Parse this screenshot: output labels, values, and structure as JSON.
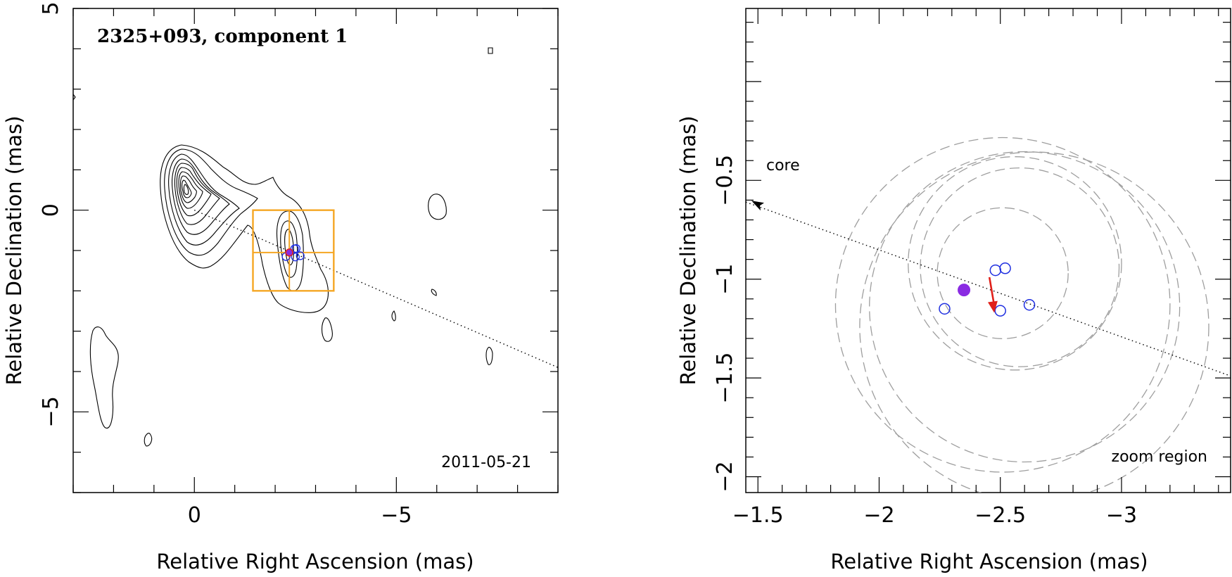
{
  "chart_data": [
    {
      "type": "contour",
      "title": "2325+093, component 1",
      "date_label": "2011-05-21",
      "xlabel": "Relative Right Ascension (mas)",
      "ylabel": "Relative Declination (mas)",
      "xlim": [
        3,
        -9
      ],
      "ylim": [
        -7,
        5
      ],
      "x_ticks": [
        0,
        -5
      ],
      "x_tick_labels": [
        "0",
        "−5"
      ],
      "y_ticks": [
        5,
        0,
        -5
      ],
      "y_tick_labels": [
        "5",
        "0",
        "−5"
      ],
      "core": {
        "x": 0.0,
        "y": 0.0
      },
      "jet_axis": {
        "from": [
          0,
          0
        ],
        "to": [
          -9,
          -3.9
        ]
      },
      "zoom_box": {
        "x": [
          -1.45,
          -3.45
        ],
        "y": [
          -2.0,
          0.0
        ]
      },
      "zoom_crosshair": {
        "x": -2.35,
        "y": -1.05
      },
      "component_position": {
        "x": -2.35,
        "y": -1.05
      },
      "component_epochs": [
        {
          "x": -2.27,
          "y": -1.15
        },
        {
          "x": -2.5,
          "y": -1.16
        },
        {
          "x": -2.48,
          "y": -0.96
        },
        {
          "x": -2.52,
          "y": -0.95
        },
        {
          "x": -2.62,
          "y": -1.13
        }
      ]
    },
    {
      "type": "scatter",
      "xlabel": "Relative Right Ascension (mas)",
      "ylabel": "Relative Declination (mas)",
      "xlim": [
        -1.45,
        -3.45
      ],
      "ylim": [
        -2.08,
        0.37
      ],
      "x_ticks": [
        -1.5,
        -2,
        -2.5,
        -3
      ],
      "x_tick_labels": [
        "−1.5",
        "−2",
        "−2.5",
        "−3"
      ],
      "y_ticks": [
        -0.5,
        -1,
        -1.5,
        -2
      ],
      "y_tick_labels": [
        "−0.5",
        "−1",
        "−1.5",
        "−2"
      ],
      "core_label": "core",
      "region_label": "zoom region",
      "mean_position": {
        "x": -2.35,
        "y": -1.055
      },
      "epochs": [
        {
          "x": -2.27,
          "y": -1.15
        },
        {
          "x": -2.5,
          "y": -1.16
        },
        {
          "x": -2.48,
          "y": -0.955
        },
        {
          "x": -2.52,
          "y": -0.945
        },
        {
          "x": -2.62,
          "y": -1.13
        }
      ],
      "motion_arrow": {
        "from": [
          -2.455,
          -0.99
        ],
        "to": [
          -2.475,
          -1.17
        ]
      },
      "jet_axis": {
        "from": [
          -1.45,
          -0.61
        ],
        "to": [
          -3.45,
          -1.49
        ]
      },
      "error_circles": [
        {
          "cx": -2.51,
          "cy": -0.97,
          "r": 0.27
        },
        {
          "cx": -2.51,
          "cy": -1.13,
          "r": 0.69
        },
        {
          "cx": -2.64,
          "cy": -1.24,
          "r": 0.72
        },
        {
          "cx": -2.6,
          "cy": -1.14,
          "r": 0.64
        },
        {
          "cx": -2.58,
          "cy": -0.94,
          "r": 0.41
        },
        {
          "cx": -2.56,
          "cy": -0.92,
          "r": 0.44
        }
      ]
    }
  ]
}
